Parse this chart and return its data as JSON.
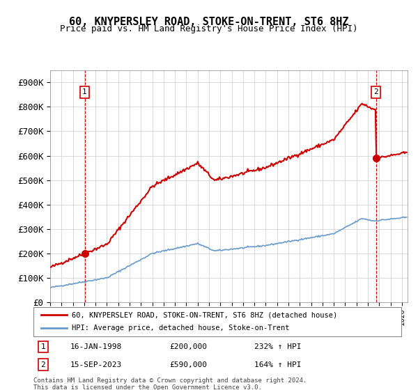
{
  "title": "60, KNYPERSLEY ROAD, STOKE-ON-TRENT, ST6 8HZ",
  "subtitle": "Price paid vs. HM Land Registry's House Price Index (HPI)",
  "ylabel_ticks": [
    "£0",
    "£100K",
    "£200K",
    "£300K",
    "£400K",
    "£500K",
    "£600K",
    "£700K",
    "£800K",
    "£900K"
  ],
  "ytick_values": [
    0,
    100000,
    200000,
    300000,
    400000,
    500000,
    600000,
    700000,
    800000,
    900000
  ],
  "ylim": [
    0,
    950000
  ],
  "xlim_start": 1995.0,
  "xlim_end": 2026.5,
  "sale1_x": 1998.04,
  "sale1_y": 200000,
  "sale1_label": "1",
  "sale2_x": 2023.71,
  "sale2_y": 590000,
  "sale2_label": "2",
  "legend_line1": "60, KNYPERSLEY ROAD, STOKE-ON-TRENT, ST6 8HZ (detached house)",
  "legend_line2": "HPI: Average price, detached house, Stoke-on-Trent",
  "ann1_label": "1",
  "ann1_date": "16-JAN-1998",
  "ann1_price": "£200,000",
  "ann1_hpi": "232% ↑ HPI",
  "ann2_label": "2",
  "ann2_date": "15-SEP-2023",
  "ann2_price": "£590,000",
  "ann2_hpi": "164% ↑ HPI",
  "footer": "Contains HM Land Registry data © Crown copyright and database right 2024.\nThis data is licensed under the Open Government Licence v3.0.",
  "hpi_color": "#6699cc",
  "price_color": "#cc0000",
  "sale_color": "#cc0000",
  "grid_color": "#cccccc",
  "background_color": "#ffffff"
}
